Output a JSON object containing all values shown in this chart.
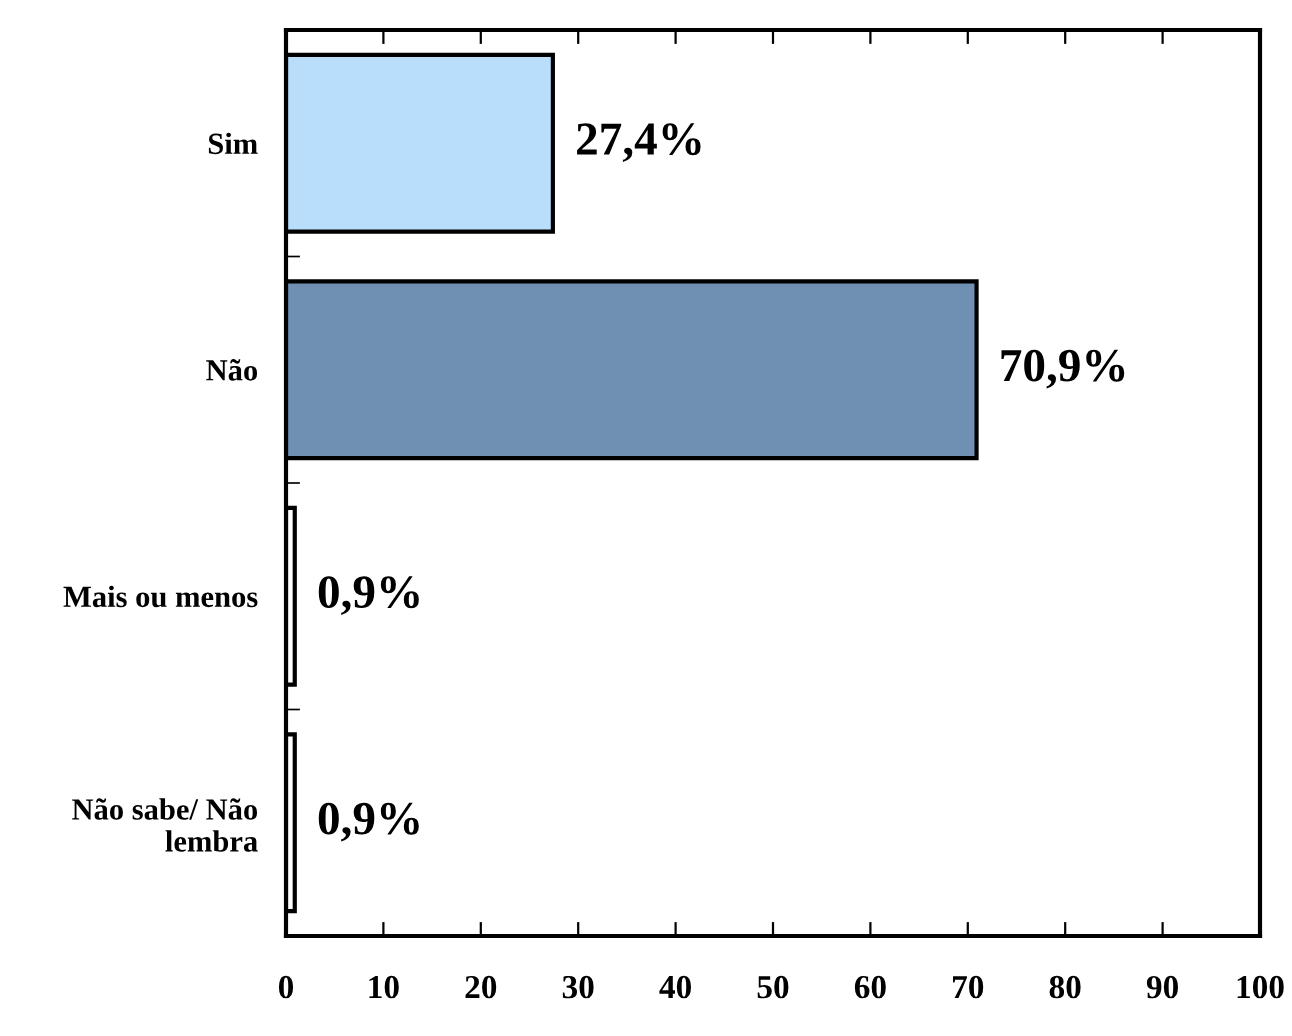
{
  "chart_data": {
    "type": "bar",
    "orientation": "horizontal",
    "categories": [
      "Sim",
      "Não",
      "Mais ou menos",
      "Não sabe/ Não\nlembra"
    ],
    "values": [
      27.4,
      70.9,
      0.9,
      0.9
    ],
    "colors": [
      "#b8defc",
      "#6f8fb3",
      "#ffffff",
      "#ffffff"
    ],
    "value_labels": [
      "27,4%",
      "70,9%",
      "0,9%",
      "0,9%"
    ],
    "xlim": [
      0,
      100
    ],
    "xticks": [
      0,
      10,
      20,
      30,
      40,
      50,
      60,
      70,
      80,
      90,
      100
    ],
    "grid": false,
    "legend": false
  }
}
